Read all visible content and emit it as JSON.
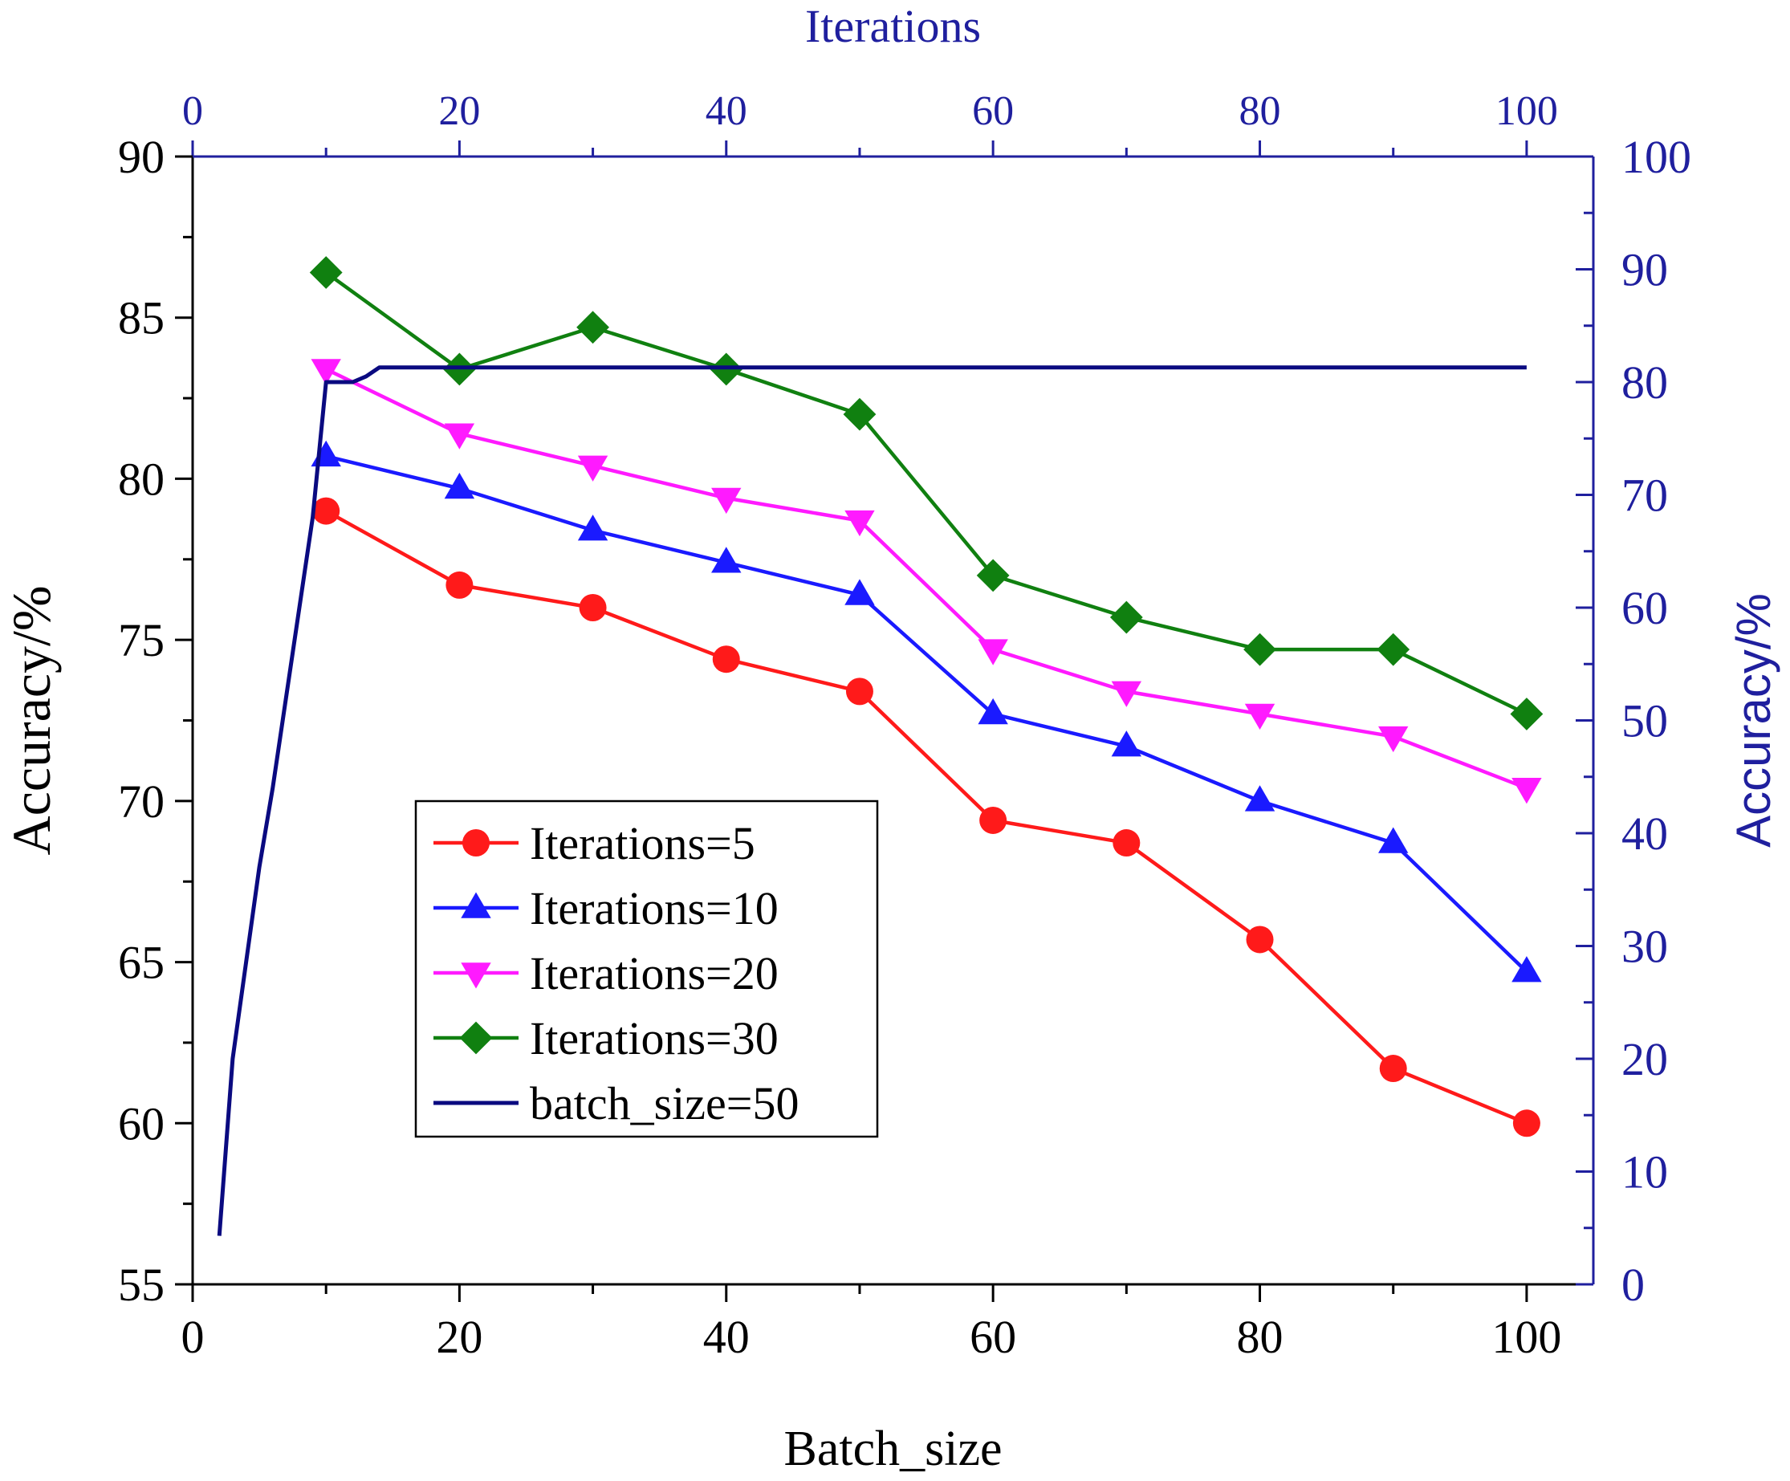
{
  "chart_data": {
    "type": "line",
    "axes": {
      "bottom": {
        "label": "Batch_size",
        "range": [
          0,
          105
        ],
        "ticks": [
          0,
          20,
          40,
          60,
          80,
          100
        ],
        "tick_labels": [
          "0",
          "20",
          "40",
          "60",
          "80",
          "100"
        ],
        "color": "#000000"
      },
      "top": {
        "label": "Iterations",
        "range": [
          0,
          105
        ],
        "ticks": [
          0,
          20,
          40,
          60,
          80,
          100
        ],
        "tick_labels": [
          "0",
          "20",
          "40",
          "60",
          "80",
          "100"
        ],
        "color": "#1f1f9e"
      },
      "left": {
        "label": "Accuracy/%",
        "range": [
          55,
          90
        ],
        "ticks": [
          55,
          60,
          65,
          70,
          75,
          80,
          85,
          90
        ],
        "tick_labels": [
          "55",
          "60",
          "65",
          "70",
          "75",
          "80",
          "85",
          "90"
        ],
        "color": "#000000"
      },
      "right": {
        "label": "Accuracy/%",
        "range": [
          0,
          100
        ],
        "ticks": [
          0,
          10,
          20,
          30,
          40,
          50,
          60,
          70,
          80,
          90,
          100
        ],
        "tick_labels": [
          "0",
          "10",
          "20",
          "30",
          "40",
          "50",
          "60",
          "70",
          "80",
          "90",
          "100"
        ],
        "color": "#1f1f9e"
      }
    },
    "series": [
      {
        "name": "Iterations=5",
        "color": "#ff1a1a",
        "marker": "circle",
        "axis": "left",
        "x": [
          10,
          20,
          30,
          40,
          50,
          60,
          70,
          80,
          90,
          100
        ],
        "values": [
          79.0,
          76.7,
          76.0,
          74.4,
          73.4,
          69.4,
          68.7,
          65.7,
          61.7,
          60.0
        ]
      },
      {
        "name": "Iterations=10",
        "color": "#1a1aff",
        "marker": "triangle-up",
        "axis": "left",
        "x": [
          10,
          20,
          30,
          40,
          50,
          60,
          70,
          80,
          90,
          100
        ],
        "values": [
          80.7,
          79.7,
          78.4,
          77.4,
          76.4,
          72.7,
          71.7,
          70.0,
          68.7,
          64.7
        ]
      },
      {
        "name": "Iterations=20",
        "color": "#ff1aff",
        "marker": "triangle-down",
        "axis": "left",
        "x": [
          10,
          20,
          30,
          40,
          50,
          60,
          70,
          80,
          90,
          100
        ],
        "values": [
          83.4,
          81.4,
          80.4,
          79.4,
          78.7,
          74.7,
          73.4,
          72.7,
          72.0,
          70.4
        ]
      },
      {
        "name": "Iterations=30",
        "color": "#108010",
        "marker": "diamond",
        "axis": "left",
        "x": [
          10,
          20,
          30,
          40,
          50,
          60,
          70,
          80,
          90,
          100
        ],
        "values": [
          86.4,
          83.4,
          84.7,
          83.4,
          82.0,
          77.0,
          75.7,
          74.7,
          74.7,
          72.7
        ]
      },
      {
        "name": "batch_size=50",
        "color": "#0a0a80",
        "marker": "none",
        "axis": "right_top",
        "x": [
          2,
          3,
          4,
          5,
          6,
          7,
          8,
          9,
          10,
          11,
          12,
          13,
          14,
          20,
          30,
          40,
          50,
          60,
          70,
          80,
          90,
          100
        ],
        "values": [
          4.3,
          20,
          28.5,
          37,
          44,
          52,
          60,
          68,
          80,
          80,
          80,
          80.5,
          81.3,
          81.3,
          81.3,
          81.3,
          81.3,
          81.3,
          81.3,
          81.3,
          81.3,
          81.3
        ]
      }
    ],
    "legend": {
      "position": "lower-left",
      "entries": [
        "Iterations=5",
        "Iterations=10",
        "Iterations=20",
        "Iterations=30",
        "batch_size=50"
      ]
    },
    "grid": false
  }
}
